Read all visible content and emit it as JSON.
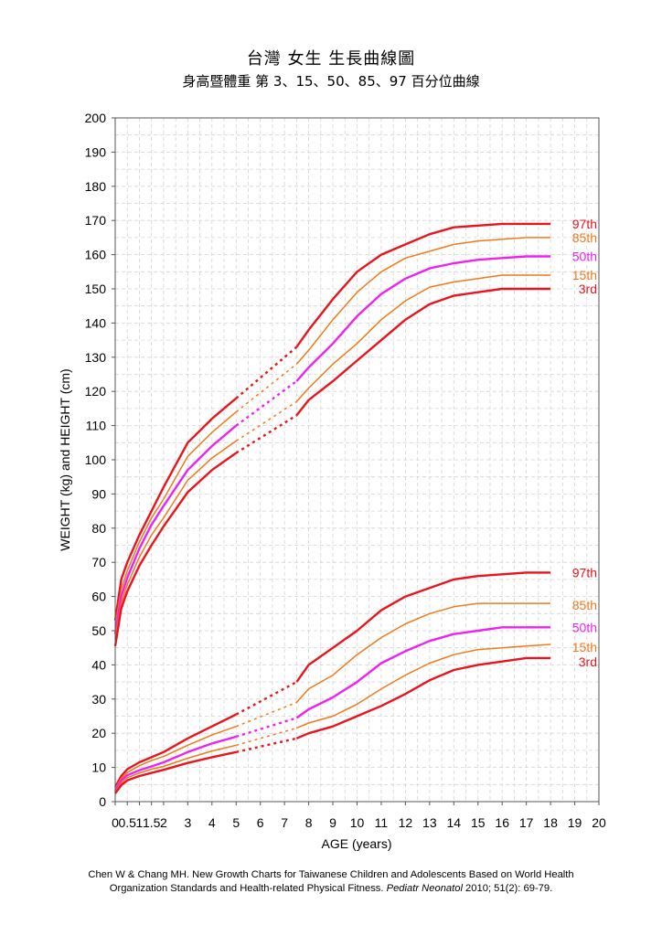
{
  "title": "台灣  女生  生長曲線圖",
  "subtitle": "身高暨體重  第 3、15、50、85、97 百分位曲線",
  "citation": {
    "line1": "Chen W & Chang MH. New Growth Charts for Taiwanese Children and Adolescents Based on World Health",
    "line2_pre": "Organization Standards and Health-related Physical Fitness. ",
    "journal": "Pediatr Neonatol",
    "line2_post": " 2010; 51(2): 69-79."
  },
  "chart_data": {
    "type": "line",
    "xlabel": "AGE (years)",
    "ylabel": "WEIGHT (kg) and HEIGHT (cm)",
    "xlim": [
      0,
      20
    ],
    "ylim": [
      0,
      200
    ],
    "grid": true,
    "x_ticks": [
      0,
      0.5,
      1,
      1.5,
      2,
      3,
      4,
      5,
      6,
      7,
      8,
      9,
      10,
      11,
      12,
      13,
      14,
      15,
      16,
      17,
      18,
      19,
      20
    ],
    "x_tick_labels": [
      "0",
      "0.5",
      "1",
      "1.5",
      "2",
      "3",
      "4",
      "5",
      "6",
      "7",
      "8",
      "9",
      "10",
      "11",
      "12",
      "13",
      "14",
      "15",
      "16",
      "17",
      "18",
      "19",
      "20"
    ],
    "y_ticks": [
      0,
      10,
      20,
      30,
      40,
      50,
      60,
      70,
      80,
      90,
      100,
      110,
      120,
      130,
      140,
      150,
      160,
      170,
      180,
      190,
      200
    ],
    "colors": {
      "p3": "#e8141e",
      "p15": "#f07a1a",
      "p50": "#ee22ee",
      "p85": "#f07a1a",
      "p97": "#e8141e"
    },
    "gap_range": [
      5,
      7.5
    ],
    "series": [
      {
        "name": "97th",
        "key": "p97",
        "group": "height",
        "x": [
          0,
          0.25,
          0.5,
          1,
          1.5,
          2,
          3,
          4,
          5,
          7.5,
          8,
          9,
          10,
          11,
          12,
          13,
          14,
          15,
          16,
          17,
          18
        ],
        "y": [
          53,
          65,
          70,
          78,
          85,
          92,
          105,
          112,
          118,
          133,
          138,
          147,
          155,
          160,
          163,
          166,
          168,
          168.5,
          169,
          169,
          169
        ]
      },
      {
        "name": "85th",
        "key": "p85",
        "group": "height",
        "x": [
          0,
          0.25,
          0.5,
          1,
          1.5,
          2,
          3,
          4,
          5,
          7.5,
          8,
          9,
          10,
          11,
          12,
          13,
          14,
          15,
          16,
          17,
          18
        ],
        "y": [
          51.5,
          62,
          67.5,
          76,
          83,
          88.5,
          101,
          108,
          114,
          128,
          132,
          141,
          149,
          155,
          159,
          161,
          163,
          164,
          164.5,
          165,
          165
        ]
      },
      {
        "name": "50th",
        "key": "p50",
        "group": "height",
        "x": [
          0,
          0.25,
          0.5,
          1,
          1.5,
          2,
          3,
          4,
          5,
          7.5,
          8,
          9,
          10,
          11,
          12,
          13,
          14,
          15,
          16,
          17,
          18
        ],
        "y": [
          49,
          60,
          65.5,
          74,
          81,
          86.5,
          97,
          104,
          110,
          123,
          127,
          134,
          142,
          148.5,
          153,
          156,
          157.5,
          158.5,
          159,
          159.5,
          159.5
        ]
      },
      {
        "name": "15th",
        "key": "p15",
        "group": "height",
        "x": [
          0,
          0.25,
          0.5,
          1,
          1.5,
          2,
          3,
          4,
          5,
          7.5,
          8,
          9,
          10,
          11,
          12,
          13,
          14,
          15,
          16,
          17,
          18
        ],
        "y": [
          47.5,
          58,
          63.5,
          71.5,
          78,
          83,
          94,
          100.5,
          105.5,
          117,
          121,
          128,
          134,
          141,
          146.5,
          150.5,
          152,
          153,
          154,
          154,
          154
        ]
      },
      {
        "name": "3rd",
        "key": "p3",
        "group": "height",
        "x": [
          0,
          0.25,
          0.5,
          1,
          1.5,
          2,
          3,
          4,
          5,
          7.5,
          8,
          9,
          10,
          11,
          12,
          13,
          14,
          15,
          16,
          17,
          18
        ],
        "y": [
          45.5,
          56.5,
          61.5,
          69,
          75,
          80.5,
          90.5,
          97,
          102,
          113,
          117.5,
          123,
          129,
          135,
          141,
          145.5,
          148,
          149,
          150,
          150,
          150
        ]
      },
      {
        "name": "97th",
        "key": "p97",
        "group": "weight",
        "x": [
          0,
          0.25,
          0.5,
          1,
          1.5,
          2,
          3,
          4,
          5,
          7.5,
          8,
          9,
          10,
          11,
          12,
          13,
          14,
          15,
          16,
          17,
          18
        ],
        "y": [
          4.3,
          7.5,
          9.5,
          11.5,
          13,
          14.5,
          18.5,
          22,
          25.5,
          35,
          40,
          45,
          50,
          56,
          60,
          62.5,
          65,
          66,
          66.5,
          67,
          67
        ]
      },
      {
        "name": "85th",
        "key": "p85",
        "group": "weight",
        "x": [
          0,
          0.25,
          0.5,
          1,
          1.5,
          2,
          3,
          4,
          5,
          7.5,
          8,
          9,
          10,
          11,
          12,
          13,
          14,
          15,
          16,
          17,
          18
        ],
        "y": [
          3.8,
          6.8,
          8.5,
          10.5,
          12,
          13.2,
          16.5,
          19.5,
          22,
          29,
          33,
          37,
          43,
          48,
          52,
          55,
          57,
          58,
          58,
          58,
          58
        ]
      },
      {
        "name": "50th",
        "key": "p50",
        "group": "weight",
        "x": [
          0,
          0.25,
          0.5,
          1,
          1.5,
          2,
          3,
          4,
          5,
          7.5,
          8,
          9,
          10,
          11,
          12,
          13,
          14,
          15,
          16,
          17,
          18
        ],
        "y": [
          3.2,
          6.2,
          7.7,
          9.2,
          10.3,
          11.5,
          14.5,
          17,
          19,
          24.5,
          27,
          30.5,
          35,
          40.5,
          44,
          47,
          49,
          50,
          51,
          51,
          51
        ]
      },
      {
        "name": "15th",
        "key": "p15",
        "group": "weight",
        "x": [
          0,
          0.25,
          0.5,
          1,
          1.5,
          2,
          3,
          4,
          5,
          7.5,
          8,
          9,
          10,
          11,
          12,
          13,
          14,
          15,
          16,
          17,
          18
        ],
        "y": [
          2.8,
          5.5,
          7,
          8.4,
          9.5,
          10.3,
          12.7,
          14.8,
          16.5,
          21.5,
          23,
          25,
          28.5,
          33,
          37,
          40.5,
          43,
          44.5,
          45,
          45.5,
          46
        ]
      },
      {
        "name": "3rd",
        "key": "p3",
        "group": "weight",
        "x": [
          0,
          0.25,
          0.5,
          1,
          1.5,
          2,
          3,
          4,
          5,
          7.5,
          8,
          9,
          10,
          11,
          12,
          13,
          14,
          15,
          16,
          17,
          18
        ],
        "y": [
          2.4,
          4.8,
          6.2,
          7.5,
          8.4,
          9.3,
          11.3,
          13,
          14.5,
          18.5,
          20,
          22,
          25,
          28,
          31.5,
          35.5,
          38.5,
          40,
          41,
          42,
          42
        ]
      }
    ]
  }
}
